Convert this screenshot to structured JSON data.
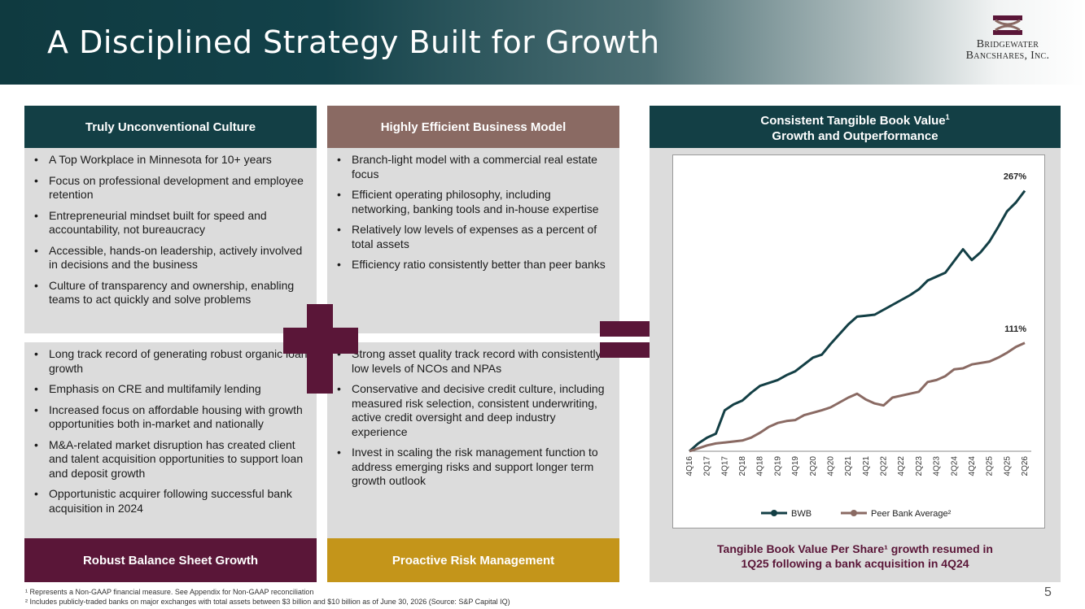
{
  "header": {
    "title": "A Disciplined Strategy Built for Growth",
    "logo_line1": "Bridgewater",
    "logo_line2": "Bancshares, Inc."
  },
  "culture": {
    "heading": "Truly Unconventional Culture",
    "bullets": [
      "A Top Workplace in Minnesota for 10+ years",
      "Focus on professional development and employee retention",
      "Entrepreneurial mindset built for speed and accountability, not bureaucracy",
      "Accessible, hands-on leadership, actively involved in decisions and the business",
      "Culture of transparency and ownership, enabling teams to act quickly and solve problems"
    ]
  },
  "business_model": {
    "heading": "Highly Efficient Business Model",
    "bullets": [
      "Branch-light model with a commercial real estate focus",
      "Efficient operating philosophy, including networking, banking tools and in-house expertise",
      "Relatively low levels of expenses as a percent of total assets",
      "Efficiency ratio consistently better than peer banks"
    ]
  },
  "balance_sheet": {
    "heading": "Robust Balance Sheet Growth",
    "bullets": [
      "Long track record of generating robust organic loan growth",
      "Emphasis on CRE and multifamily lending",
      "Increased focus on affordable housing with growth opportunities both in-market and nationally",
      "M&A-related market disruption has created client and talent acquisition opportunities to support loan and deposit growth",
      "Opportunistic acquirer following successful bank acquisition in 2024"
    ]
  },
  "risk": {
    "heading": "Proactive Risk Management",
    "bullets": [
      "Strong asset quality track record with consistently low levels of NCOs and NPAs",
      "Conservative and decisive credit culture, including measured risk selection, consistent underwriting, active credit oversight and deep industry experience",
      "Invest in scaling the risk management function to address emerging risks and support longer term growth outlook"
    ]
  },
  "chart_panel": {
    "heading_line1": "Consistent Tangible Book Value",
    "heading_sup": "1",
    "heading_line2": "Growth and Outperformance",
    "caption_line1": "Tangible Book Value Per Share¹ growth resumed in",
    "caption_line2": "1Q25 following a bank acquisition in 4Q24"
  },
  "colors": {
    "teal": "#133f45",
    "brown": "#8a6a63",
    "plum": "#5a1638",
    "gold": "#c4951a",
    "bwb_line": "#133f45",
    "peer_line": "#8a6a63"
  },
  "chart_data": {
    "type": "line",
    "x_ticks": [
      "4Q16",
      "2Q17",
      "4Q17",
      "2Q18",
      "4Q18",
      "2Q19",
      "4Q19",
      "2Q20",
      "4Q20",
      "2Q21",
      "4Q21",
      "2Q22",
      "4Q22",
      "2Q23",
      "4Q23",
      "2Q24",
      "4Q24",
      "2Q25",
      "4Q25",
      "2Q26"
    ],
    "x_count": 39,
    "ylim": [
      0,
      270
    ],
    "series": [
      {
        "name": "BWB",
        "end_label": "267%",
        "values": [
          0,
          8,
          14,
          18,
          42,
          48,
          52,
          60,
          67,
          73,
          78,
          82,
          89,
          96,
          99,
          110,
          120,
          130,
          138,
          139,
          140,
          145,
          150,
          155,
          160,
          166,
          175,
          183,
          195,
          207,
          196,
          204,
          215,
          230,
          246,
          255,
          267
        ]
      },
      {
        "name": "Peer Bank Average²",
        "end_label": "111%",
        "values": [
          0,
          3,
          6,
          8,
          9,
          11,
          14,
          19,
          25,
          29,
          31,
          32,
          37,
          42,
          45,
          50,
          55,
          59,
          53,
          49,
          47,
          55,
          59,
          61,
          71,
          73,
          77,
          84,
          85,
          89,
          92,
          96,
          101,
          107,
          111
        ]
      }
    ]
  },
  "footnotes": {
    "note1": "¹ Represents a Non-GAAP financial measure. See Appendix for Non-GAAP reconciliation",
    "note2": "² Includes publicly-traded banks on major exchanges with total assets between $3 billion and $10 billion as of June 30, 2026 (Source: S&P Capital IQ)"
  },
  "page_number": "5"
}
